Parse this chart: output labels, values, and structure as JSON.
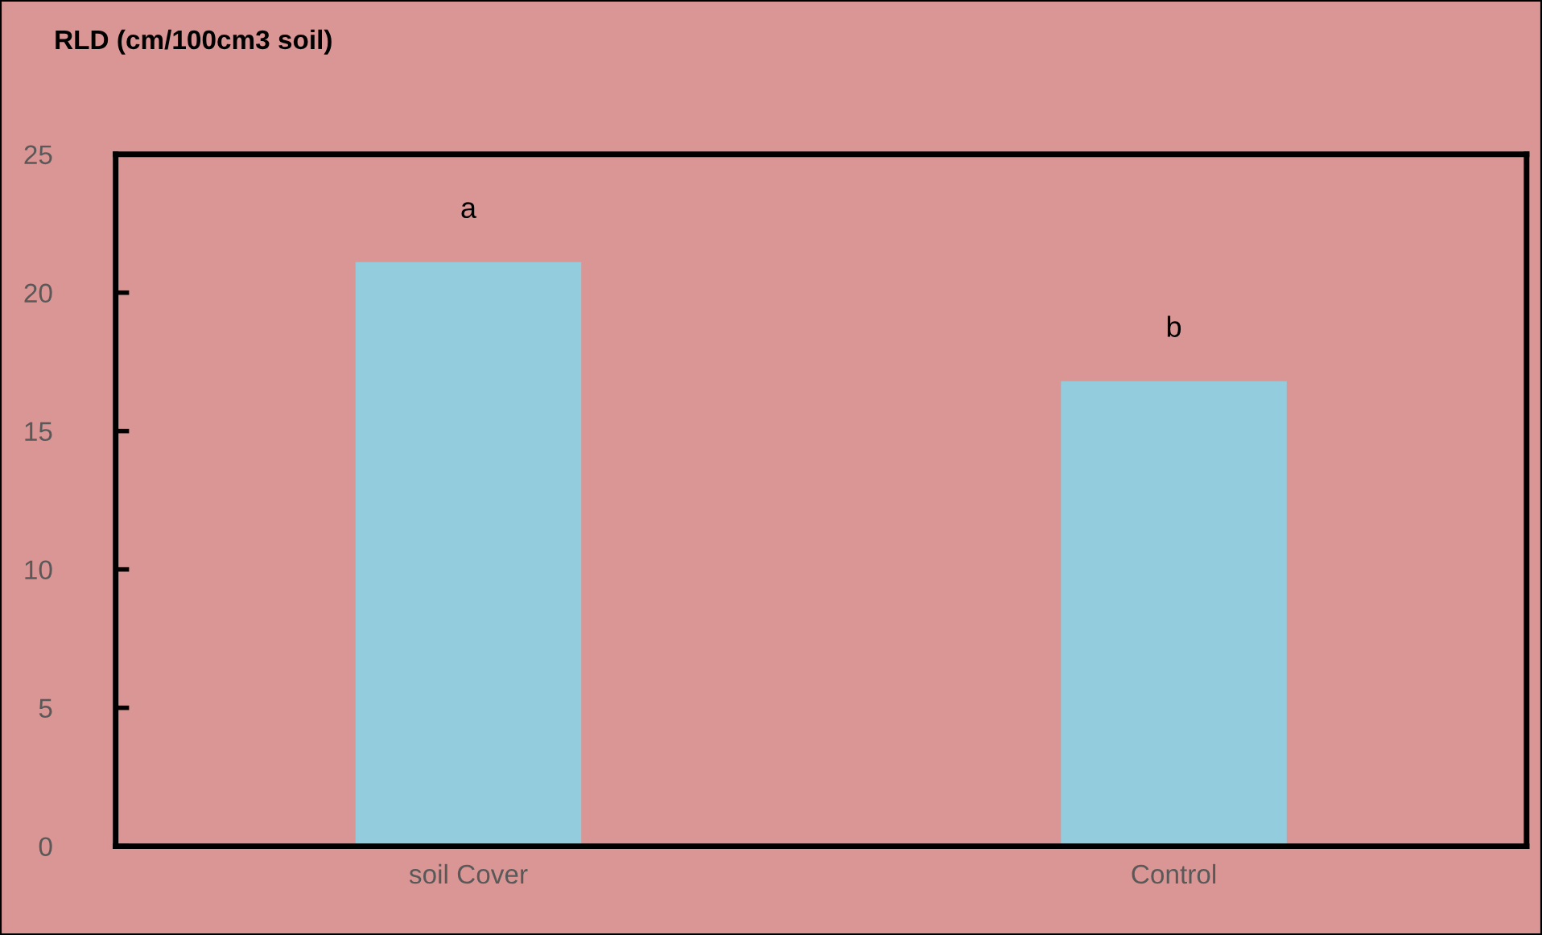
{
  "chart_data": {
    "type": "bar",
    "ylabel": "RLD (cm/100cm3 soil)",
    "categories": [
      "soil Cover",
      "Control"
    ],
    "series": [
      {
        "color": "#93cddd",
        "values": [
          21.1,
          16.8
        ]
      }
    ],
    "ylim": [
      0,
      25
    ],
    "yticks": [
      0,
      5,
      10,
      15,
      20,
      25
    ],
    "grid": false,
    "legend": false,
    "annotations": [
      "a",
      "b"
    ]
  }
}
